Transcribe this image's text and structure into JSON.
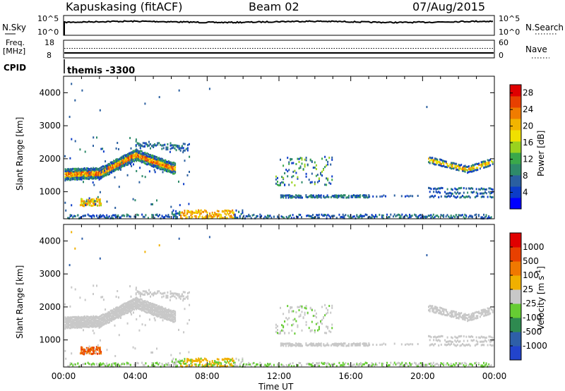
{
  "header": {
    "station": "Kapuskasing (fitACF)",
    "beam": "Beam 02",
    "date": "07/Aug/2015"
  },
  "nsky_panel": {
    "left_label": "N.Sky",
    "left_ticks": [
      "10^5",
      "10^0"
    ],
    "right_label": "N.Search",
    "right_ticks": [
      "10^5",
      "10^0"
    ]
  },
  "freq_panel": {
    "left_label": "Freq.",
    "left_unit": "[MHz]",
    "left_ticks": [
      "18",
      "8"
    ],
    "cpid_label": "CPID",
    "right_label": "Nave",
    "right_ticks": [
      "60",
      "0"
    ]
  },
  "cpid_name": "themis -3300",
  "chart_data": [
    {
      "type": "heatmap",
      "name": "Power",
      "ylabel": "Slant Range [km]",
      "yticks": [
        1000,
        2000,
        3000,
        4000
      ],
      "ylim": [
        180,
        4500
      ],
      "xlim": [
        0,
        24
      ],
      "colorbar": {
        "label": "Power [dB]",
        "ticks": [
          4,
          8,
          12,
          16,
          20,
          24,
          28
        ],
        "range": [
          0,
          30
        ],
        "colors": [
          "#0000ff",
          "#0c3cc8",
          "#2a5fa0",
          "#2e8a6a",
          "#3aa84a",
          "#9ad21e",
          "#f0e000",
          "#f2b400",
          "#f07c00",
          "#e84000",
          "#e00000"
        ]
      }
    },
    {
      "type": "heatmap",
      "name": "Velocity",
      "ylabel": "Slant Range [km]",
      "yticks": [
        1000,
        2000,
        3000,
        4000
      ],
      "ylim": [
        180,
        4500
      ],
      "xlim": [
        0,
        24
      ],
      "colorbar": {
        "label": "Velocity [m s",
        "label_sup": "-1",
        "label_end": "]",
        "ticks": [
          "1000",
          "500",
          "100",
          "25",
          "-25",
          "-100",
          "-500",
          "-1000"
        ],
        "colors": [
          "#2244cc",
          "#2e5fa8",
          "#2e8a50",
          "#66cc33",
          "#c8c8c8",
          "#f0b000",
          "#f07800",
          "#e84000",
          "#e00000"
        ]
      }
    }
  ],
  "xaxis": {
    "ticks": [
      "00:00",
      "04:00",
      "08:00",
      "12:00",
      "16:00",
      "20:00",
      "00:00"
    ],
    "label": "Time UT"
  }
}
